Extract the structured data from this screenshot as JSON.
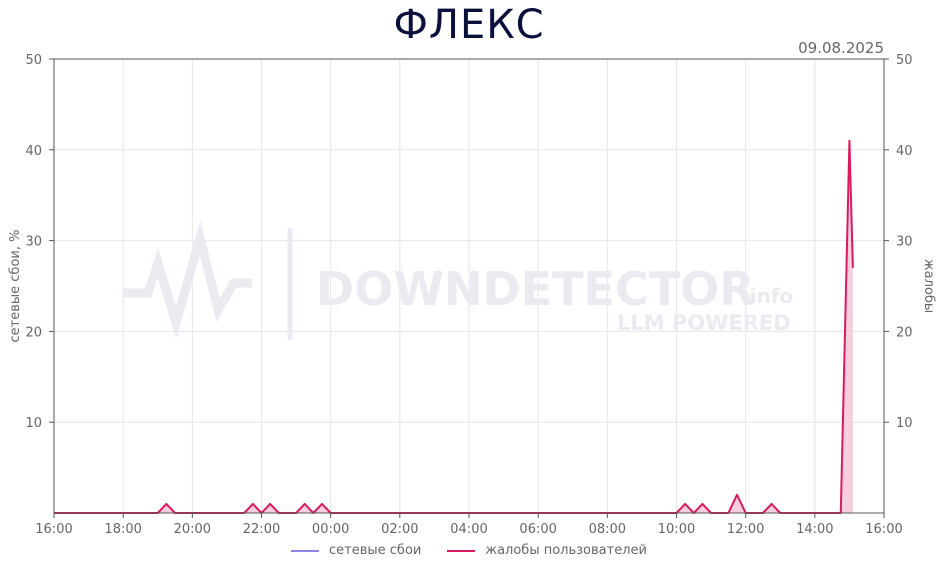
{
  "title": "ФЛЕКС",
  "date": "09.08.2025",
  "watermark": {
    "brand": "DOWNDETECTOR",
    "suffix": ".info",
    "tagline": "LLM POWERED"
  },
  "colors": {
    "network": "#8e86e0",
    "complaints": "#d81b60",
    "complaints_fill": "#f8c6d9",
    "grid": "#e6e6e6",
    "axis": "#555555"
  },
  "chart_data": {
    "type": "line",
    "title": "ФЛЕКС",
    "xlabel": "",
    "ylabel": "сетевые сбои, %",
    "y2label": "жалобы",
    "ylim": [
      0,
      50
    ],
    "y2lim": [
      0,
      50
    ],
    "yticks": [
      10,
      20,
      30,
      40,
      50
    ],
    "y2ticks": [
      10,
      20,
      30,
      40,
      50
    ],
    "xlim_hours": [
      16,
      40
    ],
    "xticks": [
      "16:00",
      "18:00",
      "20:00",
      "22:00",
      "00:00",
      "02:00",
      "04:00",
      "06:00",
      "08:00",
      "10:00",
      "12:00",
      "14:00",
      "16:00"
    ],
    "grid": true,
    "legend": "bottom-center",
    "series": [
      {
        "name": "сетевые сбои",
        "axis": "left",
        "x_hours": [],
        "values": []
      },
      {
        "name": "жалобы пользователей",
        "axis": "right",
        "x_hours": [
          16,
          19,
          19.25,
          19.5,
          21.5,
          21.75,
          22,
          22.25,
          22.5,
          23,
          23.25,
          23.5,
          23.75,
          24,
          24.25,
          34,
          34.25,
          34.5,
          34.75,
          35,
          35.5,
          35.75,
          36,
          36.5,
          36.75,
          37,
          38.75,
          39,
          39.1
        ],
        "values": [
          0,
          0,
          1,
          0,
          0,
          1,
          0,
          1,
          0,
          0,
          1,
          0,
          1,
          0,
          0,
          0,
          1,
          0,
          1,
          0,
          0,
          2,
          0,
          0,
          1,
          0,
          0,
          41,
          27
        ]
      }
    ]
  }
}
